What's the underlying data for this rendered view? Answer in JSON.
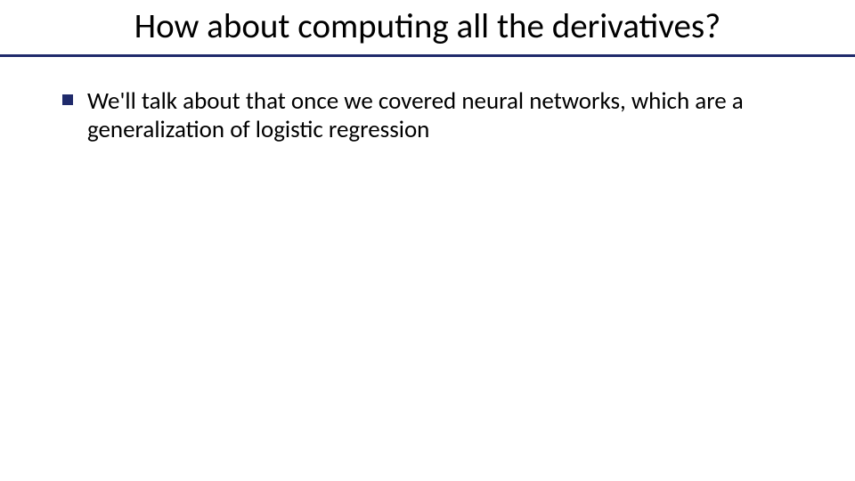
{
  "slide": {
    "title": "How about computing all the derivatives?",
    "title_color": "#000000",
    "title_fontsize": 39,
    "underline_color": "#1f2a6b",
    "underline_height": 3,
    "background_color": "#ffffff",
    "bullets": [
      {
        "text": "We'll talk about that once we covered neural networks, which are a generalization of logistic regression",
        "marker_color": "#1f2a6b",
        "marker_shape": "square",
        "text_color": "#000000",
        "fontsize": 27
      }
    ]
  }
}
